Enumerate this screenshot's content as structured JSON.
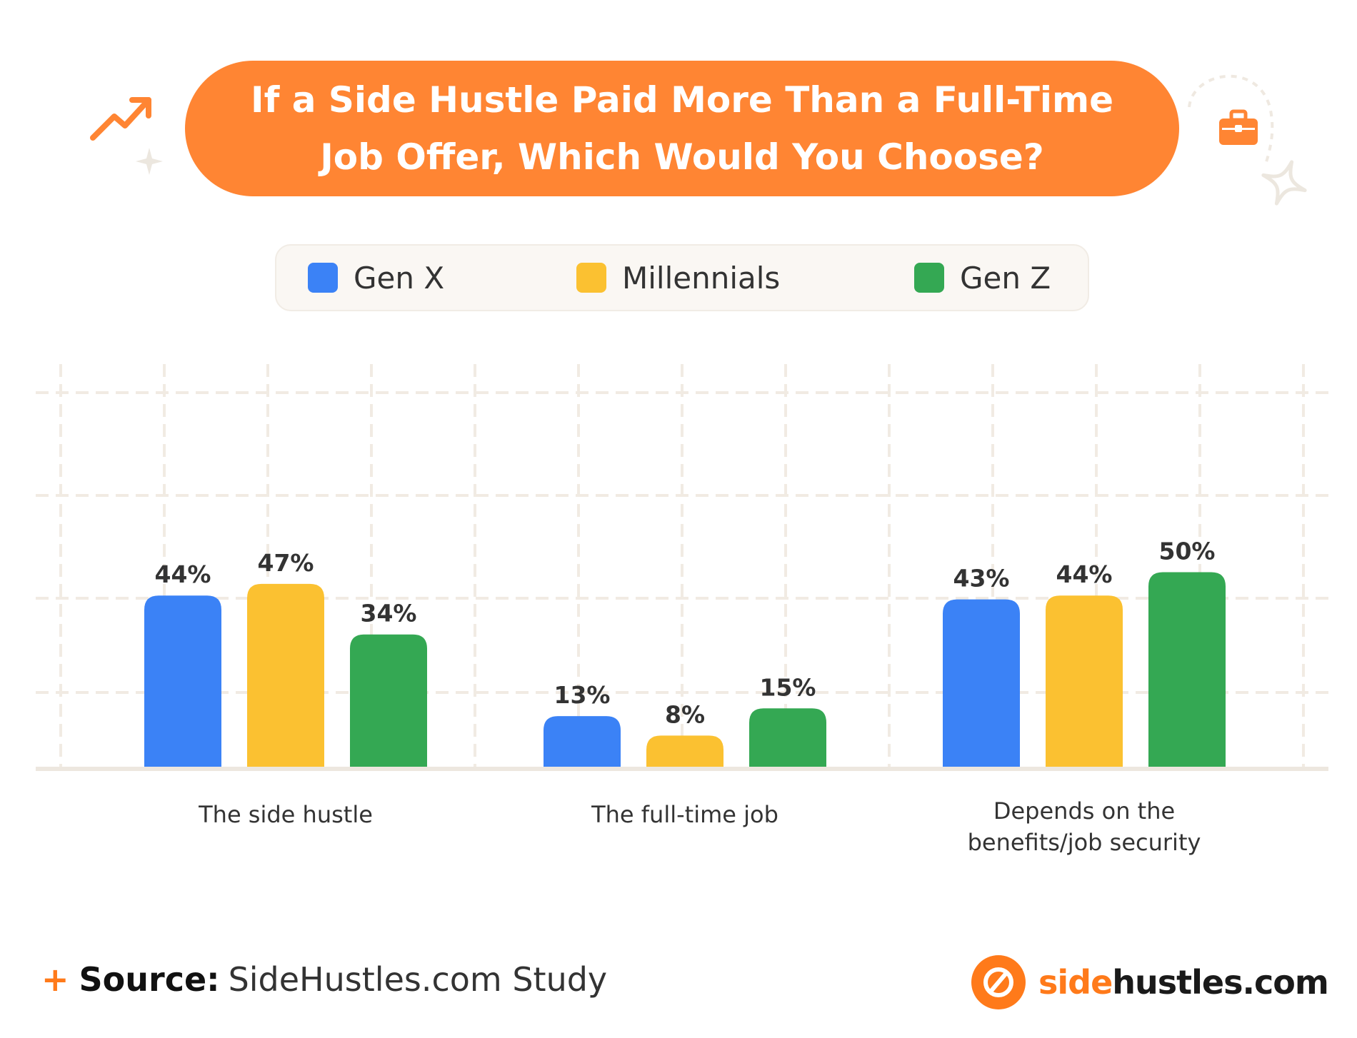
{
  "title": "If a Side Hustle Paid More Than a Full-Time Job Offer, Which Would You Choose?",
  "colors": {
    "accent": "#ff8533",
    "gen_x": "#3b82f6",
    "millennials": "#fbc131",
    "gen_z": "#34a853"
  },
  "legend": [
    {
      "label": "Gen X",
      "color": "#3b82f6"
    },
    {
      "label": "Millennials",
      "color": "#fbc131"
    },
    {
      "label": "Gen Z",
      "color": "#34a853"
    }
  ],
  "chart_data": {
    "type": "bar",
    "title": "If a Side Hustle Paid More Than a Full-Time Job Offer, Which Would You Choose?",
    "categories": [
      "The side hustle",
      "The full-time job",
      "Depends on the benefits/job security"
    ],
    "category_lines": [
      [
        "The side hustle"
      ],
      [
        "The full-time job"
      ],
      [
        "Depends on the",
        "benefits/job security"
      ]
    ],
    "series": [
      {
        "name": "Gen X",
        "values": [
          44,
          13,
          43
        ],
        "labels": [
          "44%",
          "13%",
          "43%"
        ]
      },
      {
        "name": "Millennials",
        "values": [
          47,
          8,
          44
        ],
        "labels": [
          "47%",
          "8%",
          "44%"
        ]
      },
      {
        "name": "Gen Z",
        "values": [
          34,
          15,
          50
        ],
        "labels": [
          "34%",
          "15%",
          "50%"
        ]
      }
    ],
    "ylim": [
      0,
      100
    ],
    "grid": true,
    "legend_placement": "top"
  },
  "footer": {
    "source_key": "Source:",
    "source_value": "SideHustles.com Study"
  },
  "logo": {
    "accent_text": "side",
    "rest_text": "hustles.com"
  },
  "icons": [
    "trend-up-icon",
    "briefcase-icon",
    "sparkle-icon",
    "logo-mark-icon"
  ]
}
